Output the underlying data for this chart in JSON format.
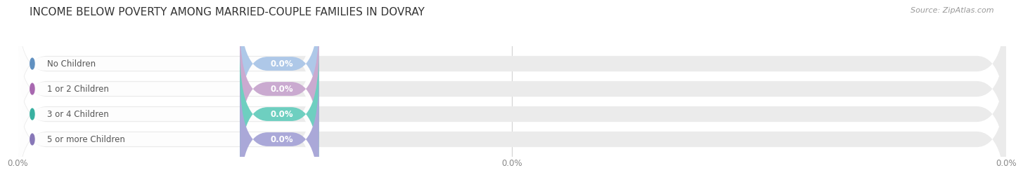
{
  "title": "INCOME BELOW POVERTY AMONG MARRIED-COUPLE FAMILIES IN DOVRAY",
  "source": "Source: ZipAtlas.com",
  "categories": [
    "No Children",
    "1 or 2 Children",
    "3 or 4 Children",
    "5 or more Children"
  ],
  "values": [
    0.0,
    0.0,
    0.0,
    0.0
  ],
  "bar_colors": [
    "#aec8e8",
    "#caaad0",
    "#6ecfc0",
    "#aaa8d8"
  ],
  "bar_bg_color": "#ebebeb",
  "dot_colors": [
    "#6090c0",
    "#a868b0",
    "#38b0a0",
    "#8878b8"
  ],
  "label_bg_color": "#f5f5f5",
  "background_color": "#ffffff",
  "title_fontsize": 11,
  "bar_label_fontsize": 8.5,
  "val_label_fontsize": 8.5,
  "tick_fontsize": 8.5,
  "source_fontsize": 8,
  "axis_label_color": "#888888",
  "title_color": "#333333",
  "source_color": "#999999",
  "bar_text_color": "#555555",
  "val_text_color": "#ffffff",
  "x_tick_positions": [
    0.0,
    50.0,
    100.0
  ],
  "x_tick_labels": [
    "0.0%",
    "0.0%",
    "0.0%"
  ]
}
